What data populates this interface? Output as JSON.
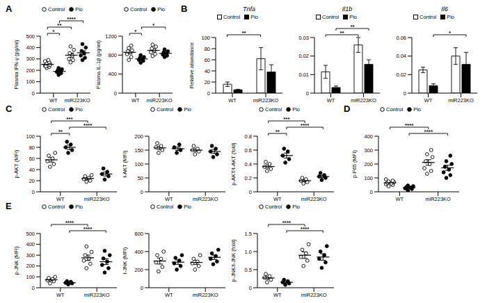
{
  "chart_data": [
    {
      "panel": "A",
      "type": "scatter",
      "ylabel": "Plasma IFN-γ (pg/ml)",
      "categories": [
        "WT",
        "miR223KO"
      ],
      "legend": "upper left",
      "series": [
        {
          "name": "Control",
          "color": "#000000",
          "marker": "open_circle",
          "values": [
            [
              220,
              230,
              240,
              245,
              250,
              255,
              260,
              270,
              280,
              290,
              235,
              248
            ],
            [
              270,
              290,
              300,
              330,
              350,
              380,
              410
            ]
          ],
          "mean": [
            252,
            333
          ],
          "error": [
            8,
            18
          ]
        },
        {
          "name": "Pio",
          "color": "#000000",
          "marker": "circle",
          "values": [
            [
              160,
              175,
              185,
              190,
              200,
              210,
              220
            ],
            [
              290,
              310,
              330,
              350,
              370,
              400,
              430
            ]
          ],
          "mean": [
            191,
            354
          ],
          "error": [
            8,
            18
          ]
        }
      ],
      "ylim": [
        0,
        500
      ],
      "yticks": [
        0,
        100,
        200,
        300,
        400,
        500
      ],
      "annotations": [
        {
          "from": 0,
          "to": 1,
          "label": "*"
        },
        {
          "from": 0,
          "to": 2,
          "label": "**"
        },
        {
          "from": 1,
          "to": 3,
          "label": "****"
        }
      ]
    },
    {
      "type": "scatter",
      "ylabel": "Plasma IL-1β (pg/ml)",
      "categories": [
        "WT",
        "miR223KO"
      ],
      "legend": "upper left",
      "series": [
        {
          "name": "Control",
          "color": "#000000",
          "marker": "open_circle",
          "values": [
            [
              700,
              760,
              820,
              860,
              880,
              900,
              950,
              1000
            ],
            [
              780,
              820,
              860,
              900,
              940,
              980,
              1020
            ]
          ],
          "mean": [
            859,
            900
          ],
          "error": [
            35,
            33
          ]
        },
        {
          "name": "Pio",
          "color": "#000000",
          "marker": "circle",
          "values": [
            [
              640,
              680,
              700,
              720,
              740,
              760,
              800
            ],
            [
              760,
              790,
              810,
              840,
              860,
              880,
              920
            ]
          ],
          "mean": [
            720,
            837
          ],
          "error": [
            20,
            20
          ]
        }
      ],
      "ylim": [
        0,
        1200
      ],
      "yticks": [
        0,
        400,
        800,
        1200
      ],
      "annotations": [
        {
          "from": 0,
          "to": 1,
          "label": "*"
        },
        {
          "from": 1,
          "to": 3,
          "label": "*"
        }
      ]
    },
    {
      "panel": "B",
      "type": "bar",
      "title": "Tnfa",
      "ylabel": "Relative abundance",
      "categories": [
        "WT",
        "miR223KO"
      ],
      "legend": "upper left",
      "series": [
        {
          "name": "Control",
          "color": "#000000",
          "marker": "open_square",
          "values": [
            16,
            62
          ],
          "error": [
            4,
            20
          ]
        },
        {
          "name": "Pio",
          "color": "#000000",
          "marker": "square",
          "values": [
            6,
            38
          ],
          "error": [
            1,
            13
          ]
        }
      ],
      "ylim": [
        0,
        100
      ],
      "yticks": [
        0,
        20,
        40,
        60,
        80,
        100
      ],
      "annotations": [
        {
          "from": 0,
          "to": 2,
          "label": "**"
        }
      ]
    },
    {
      "type": "bar",
      "title": "Il1b",
      "categories": [
        "WT",
        "miR223KO"
      ],
      "legend": "upper left",
      "series": [
        {
          "name": "Control",
          "color": "#000000",
          "marker": "open_square",
          "values": [
            0.0115,
            0.026
          ],
          "error": [
            0.0035,
            0.004
          ]
        },
        {
          "name": "Pio",
          "color": "#000000",
          "marker": "square",
          "values": [
            0.003,
            0.0155
          ],
          "error": [
            0.0008,
            0.0025
          ]
        }
      ],
      "ylim": [
        0,
        0.03
      ],
      "yticks": [
        0,
        0.01,
        0.02,
        0.03
      ],
      "annotations": [
        {
          "from": 0,
          "to": 2,
          "label": "**"
        },
        {
          "from": 1,
          "to": 3,
          "label": "**"
        }
      ]
    },
    {
      "type": "bar",
      "title": "Il6",
      "categories": [
        "WT",
        "miR223KO"
      ],
      "legend": "upper left",
      "series": [
        {
          "name": "Control",
          "color": "#000000",
          "marker": "open_square",
          "values": [
            0.025,
            0.04
          ],
          "error": [
            0.003,
            0.009
          ]
        },
        {
          "name": "Pio",
          "color": "#000000",
          "marker": "square",
          "values": [
            0.008,
            0.031
          ],
          "error": [
            0.002,
            0.013
          ]
        }
      ],
      "ylim": [
        0,
        0.06
      ],
      "yticks": [
        0,
        0.02,
        0.04,
        0.06
      ],
      "annotations": [
        {
          "from": 1,
          "to": 3,
          "label": "*"
        }
      ]
    },
    {
      "panel": "C",
      "type": "scatter",
      "ylabel": "p-AKT (MFI)",
      "categories": [
        "WT",
        "miR223KO"
      ],
      "legend": "upper left",
      "series": [
        {
          "name": "Control",
          "color": "#000000",
          "marker": "open_circle",
          "values": [
            [
              45,
              50,
              55,
              60,
              65,
              70
            ],
            [
              18,
              20,
              23,
              25,
              28,
              30
            ]
          ],
          "mean": [
            57.5,
            24
          ],
          "error": [
            4,
            2
          ]
        },
        {
          "name": "Pio",
          "color": "#000000",
          "marker": "circle",
          "values": [
            [
              70,
              75,
              80,
              85,
              90
            ],
            [
              22,
              28,
              32,
              36,
              42
            ]
          ],
          "mean": [
            80,
            32
          ],
          "error": [
            4,
            3.5
          ]
        }
      ],
      "ylim": [
        0,
        100
      ],
      "yticks": [
        0,
        20,
        40,
        60,
        80,
        100
      ],
      "annotations": [
        {
          "from": 0,
          "to": 1,
          "label": "**"
        },
        {
          "from": 1,
          "to": 3,
          "label": "****"
        },
        {
          "from": 0,
          "to": 2,
          "label": "***"
        }
      ]
    },
    {
      "type": "scatter",
      "ylabel": "t-AKT (MFI)",
      "categories": [
        "WT",
        "miR223KO"
      ],
      "legend": "upper left",
      "series": [
        {
          "name": "Control",
          "color": "#000000",
          "marker": "open_circle",
          "values": [
            [
              140,
              150,
              160,
              165,
              175
            ],
            [
              135,
              145,
              150,
              155,
              165
            ]
          ],
          "mean": [
            158,
            150
          ],
          "error": [
            6,
            5
          ]
        },
        {
          "name": "Pio",
          "color": "#000000",
          "marker": "circle",
          "values": [
            [
              140,
              150,
              160,
              170
            ],
            [
              125,
              135,
              145,
              155,
              165
            ]
          ],
          "mean": [
            155,
            145
          ],
          "error": [
            6,
            7
          ]
        }
      ],
      "ylim": [
        0,
        200
      ],
      "yticks": [
        0,
        50,
        100,
        150,
        200
      ]
    },
    {
      "type": "scatter",
      "ylabel": "p-AKT/t-AKT (fold)",
      "categories": [
        "WT",
        "miR223KO"
      ],
      "legend": "upper left",
      "series": [
        {
          "name": "Control",
          "color": "#000000",
          "marker": "open_circle",
          "values": [
            [
              0.3,
              0.33,
              0.36,
              0.4,
              0.43
            ],
            [
              0.12,
              0.14,
              0.16,
              0.18,
              0.2
            ]
          ],
          "mean": [
            0.364,
            0.16
          ],
          "error": [
            0.023,
            0.014
          ]
        },
        {
          "name": "Pio",
          "color": "#000000",
          "marker": "circle",
          "values": [
            [
              0.42,
              0.47,
              0.52,
              0.58,
              0.62
            ],
            [
              0.17,
              0.2,
              0.22,
              0.24,
              0.27
            ]
          ],
          "mean": [
            0.522,
            0.22
          ],
          "error": [
            0.036,
            0.017
          ]
        }
      ],
      "ylim": [
        0,
        0.8
      ],
      "yticks": [
        0,
        0.2,
        0.4,
        0.6,
        0.8
      ],
      "annotations": [
        {
          "from": 0,
          "to": 1,
          "label": "**"
        },
        {
          "from": 1,
          "to": 3,
          "label": "****"
        },
        {
          "from": 0,
          "to": 2,
          "label": "***"
        }
      ]
    },
    {
      "panel": "D",
      "type": "scatter",
      "ylabel": "p-P65 (MFI)",
      "categories": [
        "WT",
        "miR223KO"
      ],
      "legend": "upper left",
      "series": [
        {
          "name": "Control",
          "color": "#000000",
          "marker": "open_circle",
          "values": [
            [
              40,
              50,
              55,
              60,
              65,
              70,
              75,
              80,
              90
            ],
            [
              130,
              150,
              170,
              200,
              220,
              250,
              270,
              300
            ]
          ],
          "mean": [
            65,
            211
          ],
          "error": [
            5,
            20
          ]
        },
        {
          "name": "Pio",
          "color": "#000000",
          "marker": "circle",
          "values": [
            [
              10,
              20,
              25,
              30,
              35,
              40,
              45
            ],
            [
              100,
              120,
              140,
              160,
              180,
              200,
              220,
              260
            ]
          ],
          "mean": [
            29,
            172.5
          ],
          "error": [
            4,
            18
          ]
        }
      ],
      "ylim": [
        0,
        400
      ],
      "yticks": [
        0,
        100,
        200,
        300,
        400
      ],
      "annotations": [
        {
          "from": 1,
          "to": 3,
          "label": "****"
        },
        {
          "from": 0,
          "to": 2,
          "label": "****"
        }
      ]
    },
    {
      "panel": "E",
      "type": "scatter",
      "ylabel": "p-JNK (MFI)",
      "categories": [
        "WT",
        "miR223KO"
      ],
      "legend": "upper left",
      "series": [
        {
          "name": "Control",
          "color": "#000000",
          "marker": "open_circle",
          "values": [
            [
              40,
              60,
              70,
              80,
              90,
              100
            ],
            [
              180,
              220,
              250,
              270,
              300,
              330,
              380
            ]
          ],
          "mean": [
            73,
            276
          ],
          "error": [
            9,
            25
          ]
        },
        {
          "name": "Pio",
          "color": "#000000",
          "marker": "circle",
          "values": [
            [
              30,
              40,
              45,
              55,
              60
            ],
            [
              140,
              180,
              210,
              240,
              270,
              300,
              340
            ]
          ],
          "mean": [
            46,
            240
          ],
          "error": [
            5,
            26
          ]
        }
      ],
      "ylim": [
        0,
        500
      ],
      "yticks": [
        0,
        100,
        200,
        300,
        400,
        500
      ],
      "annotations": [
        {
          "from": 1,
          "to": 3,
          "label": "****"
        },
        {
          "from": 0,
          "to": 2,
          "label": "****"
        }
      ]
    },
    {
      "type": "scatter",
      "ylabel": "t-JNK (MFI)",
      "categories": [
        "WT",
        "miR223KO"
      ],
      "legend": "upper left",
      "series": [
        {
          "name": "Control",
          "color": "#000000",
          "marker": "open_circle",
          "values": [
            [
              180,
              230,
              280,
              320,
              360,
              400
            ],
            [
              200,
              240,
              270,
              290,
              320,
              360
            ]
          ],
          "mean": [
            295,
            280
          ],
          "error": [
            33,
            23
          ]
        },
        {
          "name": "Pio",
          "color": "#000000",
          "marker": "circle",
          "values": [
            [
              200,
              240,
              270,
              300,
              330,
              360
            ],
            [
              260,
              290,
              320,
              350,
              380,
              420
            ]
          ],
          "mean": [
            283,
            337
          ],
          "error": [
            24,
            24
          ]
        }
      ],
      "ylim": [
        0,
        600
      ],
      "yticks": [
        0,
        200,
        400,
        600
      ]
    },
    {
      "type": "scatter",
      "ylabel": "p-JNK/t-JNK (fold)",
      "categories": [
        "WT",
        "miR223KO"
      ],
      "legend": "upper left",
      "series": [
        {
          "name": "Control",
          "color": "#000000",
          "marker": "open_circle",
          "values": [
            [
              0.15,
              0.22,
              0.28,
              0.32,
              0.38
            ],
            [
              0.6,
              0.75,
              0.85,
              0.95,
              1.05,
              1.2
            ]
          ],
          "mean": [
            0.27,
            0.9
          ],
          "error": [
            0.04,
            0.09
          ]
        },
        {
          "name": "Pio",
          "color": "#000000",
          "marker": "circle",
          "values": [
            [
              0.08,
              0.12,
              0.15,
              0.18,
              0.22
            ],
            [
              0.55,
              0.7,
              0.8,
              0.9,
              1.0,
              1.15
            ]
          ],
          "mean": [
            0.15,
            0.85
          ],
          "error": [
            0.024,
            0.09
          ]
        }
      ],
      "ylim": [
        0,
        1.5
      ],
      "yticks": [
        0,
        0.5,
        {
          "value": 1,
          "label": "1.0"
        },
        1.5
      ],
      "annotations": [
        {
          "from": 1,
          "to": 3,
          "label": "****"
        },
        {
          "from": 0,
          "to": 2,
          "label": "****"
        }
      ]
    }
  ]
}
